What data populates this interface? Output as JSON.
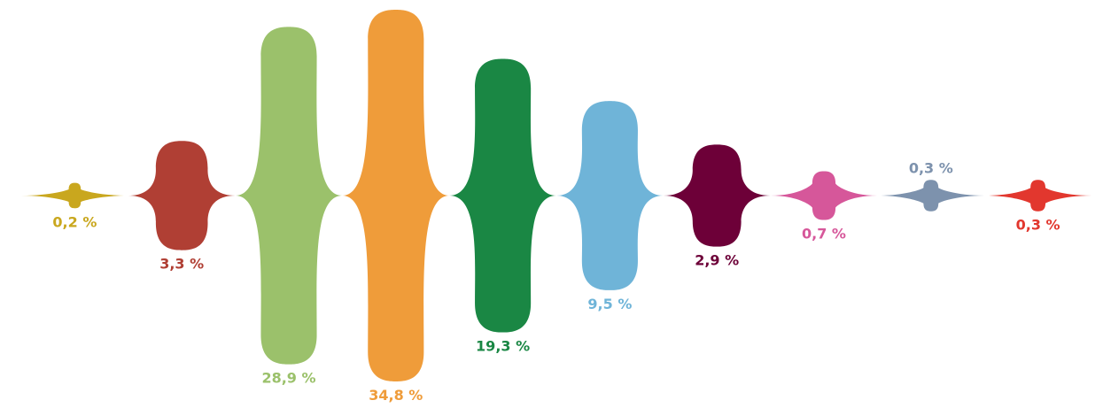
{
  "chart_data": {
    "type": "area",
    "title": "",
    "xlabel": "",
    "ylabel": "",
    "grid": false,
    "legend": "none",
    "segments": [
      {
        "value": 0.2,
        "label": "0,2 %",
        "color": "#C9A71E",
        "label_side": "below"
      },
      {
        "value": 3.3,
        "label": "3,3 %",
        "color": "#B03F34",
        "label_side": "below"
      },
      {
        "value": 28.9,
        "label": "28,9 %",
        "color": "#9BC16B",
        "label_side": "below"
      },
      {
        "value": 34.8,
        "label": "34,8 %",
        "color": "#EF9C3A",
        "label_side": "below"
      },
      {
        "value": 19.3,
        "label": "19,3 %",
        "color": "#1A8744",
        "label_side": "below"
      },
      {
        "value": 9.5,
        "label": "9,5 %",
        "color": "#6FB4D8",
        "label_side": "below"
      },
      {
        "value": 2.9,
        "label": "2,9 %",
        "color": "#6D0038",
        "label_side": "below"
      },
      {
        "value": 0.7,
        "label": "0,7 %",
        "color": "#D6579A",
        "label_side": "below"
      },
      {
        "value": 0.3,
        "label": "0,3 %",
        "color": "#7D92AD",
        "label_side": "above"
      },
      {
        "value": 0.3,
        "label": "0,3 %",
        "color": "#E2372E",
        "label_side": "below"
      }
    ]
  }
}
